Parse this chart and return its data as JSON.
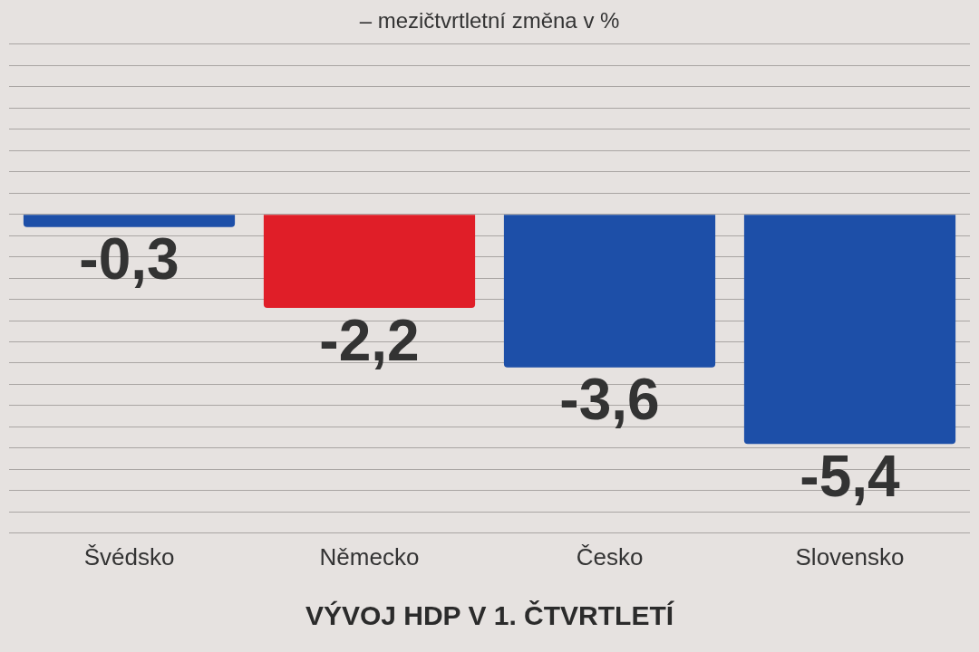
{
  "chart_data": {
    "type": "bar",
    "title": "VÝVOJ HDP V 1. ČTVRTLETÍ",
    "subtitle": "– mezičtvrtletní změna v %",
    "categories": [
      "Švédsko",
      "Německo",
      "Česko",
      "Slovensko"
    ],
    "values": [
      -0.3,
      -2.2,
      -3.6,
      -5.4
    ],
    "colors": [
      "#1d4fa8",
      "#e01e28",
      "#1d4fa8",
      "#1d4fa8"
    ],
    "value_labels": [
      "-0,3",
      "-2,2",
      "-3,6",
      "-5,4"
    ],
    "ylim": [
      -7.5,
      4
    ],
    "yticks": [
      {
        "value": 4,
        "label": null
      },
      {
        "value": 3.5,
        "label": null
      },
      {
        "value": 3,
        "label": null
      },
      {
        "value": 2.5,
        "label": null
      },
      {
        "value": 2,
        "label": null
      },
      {
        "value": 1.5,
        "label": null
      },
      {
        "value": 1,
        "label": null
      },
      {
        "value": 0.5,
        "label": null
      },
      {
        "value": 0,
        "label": null
      },
      {
        "value": -0.5,
        "label": null
      },
      {
        "value": -1,
        "label": null
      },
      {
        "value": -1.5,
        "label": null
      },
      {
        "value": -2,
        "label": null
      },
      {
        "value": -2.5,
        "label": null
      },
      {
        "value": -3,
        "label": null
      },
      {
        "value": -3.5,
        "label": null
      },
      {
        "value": -4,
        "label": null
      },
      {
        "value": -4.5,
        "label": null
      },
      {
        "value": -5,
        "label": null
      },
      {
        "value": -5.5,
        "label": null
      },
      {
        "value": -6,
        "label": null
      },
      {
        "value": -6.5,
        "label": null
      },
      {
        "value": -7,
        "label": null
      },
      {
        "value": -7.5,
        "label": null
      }
    ],
    "grid": "y",
    "tick_labels": "x",
    "legend": false
  }
}
